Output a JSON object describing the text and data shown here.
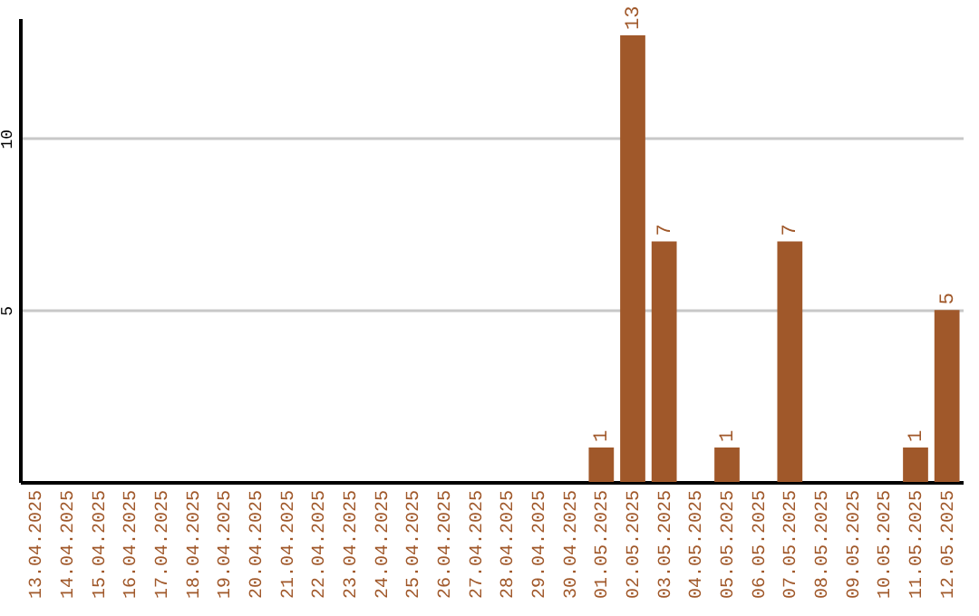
{
  "chart_data": {
    "type": "bar",
    "categories": [
      "13.04.2025",
      "14.04.2025",
      "15.04.2025",
      "16.04.2025",
      "17.04.2025",
      "18.04.2025",
      "19.04.2025",
      "20.04.2025",
      "21.04.2025",
      "22.04.2025",
      "23.04.2025",
      "24.04.2025",
      "25.04.2025",
      "26.04.2025",
      "27.04.2025",
      "28.04.2025",
      "29.04.2025",
      "30.04.2025",
      "01.05.2025",
      "02.05.2025",
      "03.05.2025",
      "04.05.2025",
      "05.05.2025",
      "06.05.2025",
      "07.05.2025",
      "08.05.2025",
      "09.05.2025",
      "10.05.2025",
      "11.05.2025",
      "12.05.2025"
    ],
    "values": [
      0,
      0,
      0,
      0,
      0,
      0,
      0,
      0,
      0,
      0,
      0,
      0,
      0,
      0,
      0,
      0,
      0,
      0,
      1,
      13,
      7,
      0,
      1,
      0,
      7,
      0,
      0,
      0,
      1,
      5
    ],
    "value_labels": [
      null,
      null,
      null,
      null,
      null,
      null,
      null,
      null,
      null,
      null,
      null,
      null,
      null,
      null,
      null,
      null,
      null,
      null,
      "1",
      "13",
      "7",
      null,
      "1",
      null,
      "7",
      null,
      null,
      null,
      "1",
      "5"
    ],
    "color": "#a0582a",
    "ylim": [
      0,
      13.5
    ],
    "yticks": [
      5,
      10
    ],
    "grid": "y"
  }
}
